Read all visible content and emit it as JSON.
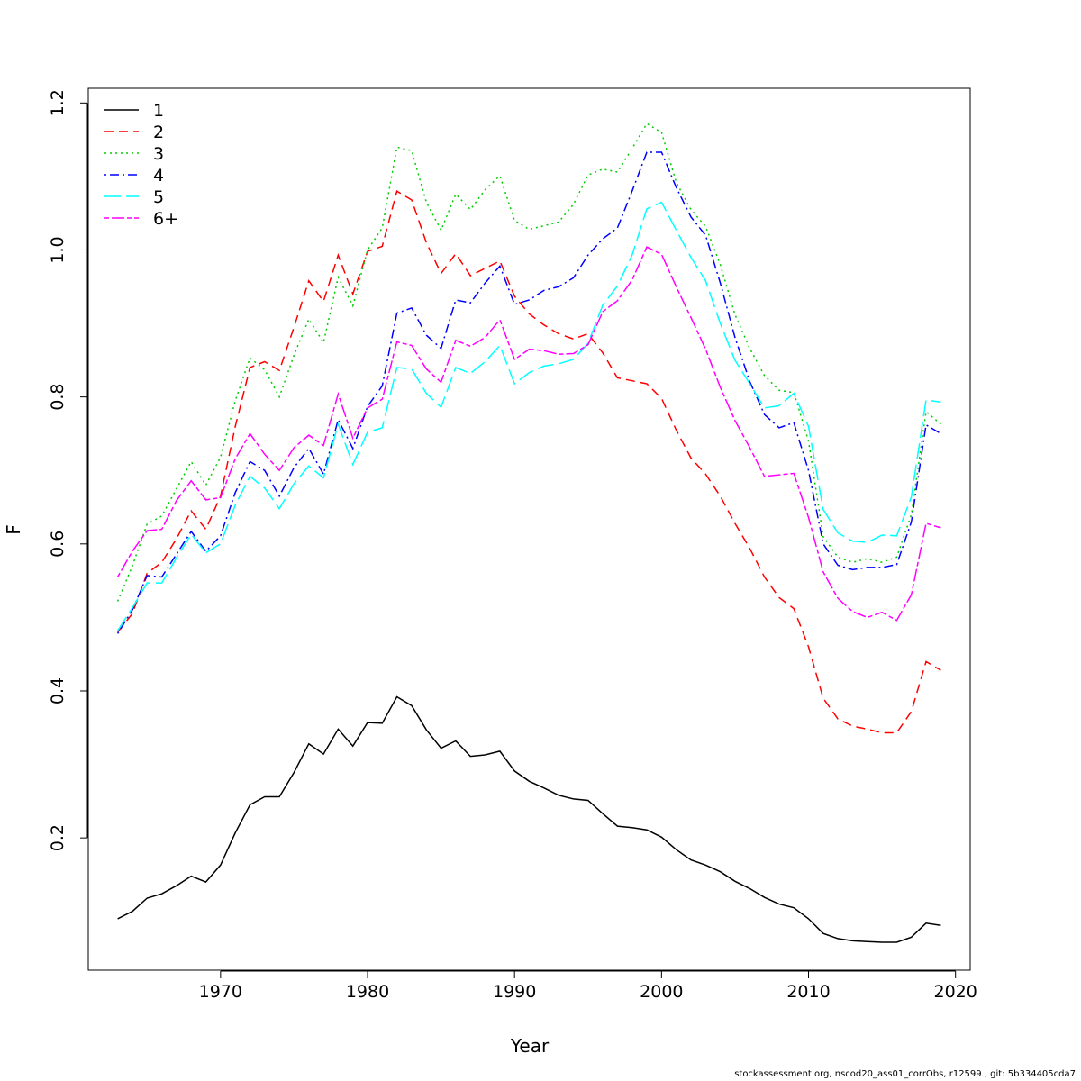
{
  "chart_data": {
    "type": "line",
    "title": "",
    "xlabel": "Year",
    "ylabel": "F",
    "xlim": [
      1961,
      2021
    ],
    "ylim": [
      0.02,
      1.22
    ],
    "xticks": [
      1970,
      1980,
      1990,
      2000,
      2010,
      2020
    ],
    "xtick_labels": [
      "1970",
      "1980",
      "1990",
      "2000",
      "2010",
      "2020"
    ],
    "yticks": [
      0.2,
      0.4,
      0.6,
      0.8,
      1.0,
      1.2
    ],
    "ytick_labels": [
      "0.2",
      "0.4",
      "0.6",
      "0.8",
      "1.0",
      "1.2"
    ],
    "grid": false,
    "legend_position": "top-left",
    "x": [
      1963,
      1964,
      1965,
      1966,
      1967,
      1968,
      1969,
      1970,
      1971,
      1972,
      1973,
      1974,
      1975,
      1976,
      1977,
      1978,
      1979,
      1980,
      1981,
      1982,
      1983,
      1984,
      1985,
      1986,
      1987,
      1988,
      1989,
      1990,
      1991,
      1992,
      1993,
      1994,
      1995,
      1996,
      1997,
      1998,
      1999,
      2000,
      2001,
      2002,
      2003,
      2004,
      2005,
      2006,
      2007,
      2008,
      2009,
      2010,
      2011,
      2012,
      2013,
      2014,
      2015,
      2016,
      2017,
      2018,
      2019
    ],
    "series": [
      {
        "name": "1",
        "color": "#000000",
        "dash": "solid",
        "values": [
          0.09,
          0.1,
          0.118,
          0.124,
          0.135,
          0.148,
          0.14,
          0.163,
          0.207,
          0.245,
          0.256,
          0.256,
          0.289,
          0.328,
          0.314,
          0.348,
          0.325,
          0.357,
          0.356,
          0.392,
          0.38,
          0.347,
          0.322,
          0.332,
          0.311,
          0.313,
          0.318,
          0.291,
          0.277,
          0.268,
          0.258,
          0.253,
          0.251,
          0.233,
          0.216,
          0.214,
          0.211,
          0.201,
          0.184,
          0.17,
          0.163,
          0.154,
          0.141,
          0.131,
          0.119,
          0.11,
          0.105,
          0.09,
          0.07,
          0.063,
          0.06,
          0.059,
          0.058,
          0.058,
          0.065,
          0.084,
          0.081
        ]
      },
      {
        "name": "2",
        "color": "#ff0000",
        "dash": "dashed",
        "values": [
          0.48,
          0.505,
          0.56,
          0.575,
          0.607,
          0.645,
          0.62,
          0.665,
          0.76,
          0.84,
          0.848,
          0.836,
          0.895,
          0.958,
          0.93,
          0.993,
          0.94,
          0.998,
          1.005,
          1.08,
          1.068,
          1.01,
          0.968,
          0.995,
          0.965,
          0.975,
          0.985,
          0.937,
          0.913,
          0.898,
          0.886,
          0.879,
          0.886,
          0.86,
          0.826,
          0.822,
          0.818,
          0.798,
          0.755,
          0.717,
          0.695,
          0.665,
          0.628,
          0.594,
          0.555,
          0.527,
          0.512,
          0.46,
          0.39,
          0.362,
          0.352,
          0.348,
          0.343,
          0.343,
          0.372,
          0.44,
          0.428
        ]
      },
      {
        "name": "3",
        "color": "#00cd00",
        "dash": "dotted",
        "values": [
          0.522,
          0.57,
          0.627,
          0.638,
          0.675,
          0.712,
          0.68,
          0.718,
          0.795,
          0.853,
          0.837,
          0.8,
          0.857,
          0.906,
          0.874,
          0.963,
          0.924,
          1.0,
          1.03,
          1.14,
          1.135,
          1.065,
          1.027,
          1.076,
          1.055,
          1.082,
          1.101,
          1.04,
          1.028,
          1.033,
          1.038,
          1.062,
          1.102,
          1.11,
          1.106,
          1.138,
          1.172,
          1.16,
          1.092,
          1.055,
          1.032,
          0.98,
          0.912,
          0.866,
          0.829,
          0.809,
          0.806,
          0.74,
          0.61,
          0.582,
          0.575,
          0.58,
          0.575,
          0.582,
          0.64,
          0.78,
          0.763
        ]
      },
      {
        "name": "4",
        "color": "#0000ff",
        "dash": "dotdash",
        "values": [
          0.478,
          0.51,
          0.557,
          0.555,
          0.586,
          0.617,
          0.59,
          0.611,
          0.67,
          0.712,
          0.7,
          0.665,
          0.704,
          0.73,
          0.695,
          0.769,
          0.73,
          0.787,
          0.815,
          0.914,
          0.921,
          0.884,
          0.866,
          0.932,
          0.928,
          0.955,
          0.978,
          0.926,
          0.932,
          0.945,
          0.95,
          0.962,
          0.993,
          1.015,
          1.03,
          1.08,
          1.133,
          1.133,
          1.085,
          1.045,
          1.02,
          0.955,
          0.881,
          0.821,
          0.776,
          0.758,
          0.765,
          0.7,
          0.6,
          0.571,
          0.565,
          0.568,
          0.568,
          0.572,
          0.63,
          0.762,
          0.75
        ]
      },
      {
        "name": "5",
        "color": "#00ffff",
        "dash": "longdash",
        "values": [
          0.482,
          0.513,
          0.547,
          0.547,
          0.581,
          0.613,
          0.588,
          0.6,
          0.653,
          0.692,
          0.676,
          0.648,
          0.682,
          0.706,
          0.69,
          0.763,
          0.708,
          0.752,
          0.758,
          0.84,
          0.838,
          0.805,
          0.786,
          0.84,
          0.832,
          0.848,
          0.87,
          0.818,
          0.833,
          0.842,
          0.845,
          0.851,
          0.873,
          0.925,
          0.951,
          0.993,
          1.056,
          1.065,
          1.027,
          0.99,
          0.958,
          0.9,
          0.85,
          0.818,
          0.785,
          0.788,
          0.805,
          0.76,
          0.647,
          0.615,
          0.604,
          0.602,
          0.612,
          0.611,
          0.664,
          0.796,
          0.793
        ]
      },
      {
        "name": "6+",
        "color": "#ff00ff",
        "dash": "twodash",
        "values": [
          0.555,
          0.59,
          0.618,
          0.62,
          0.659,
          0.686,
          0.66,
          0.663,
          0.716,
          0.75,
          0.722,
          0.7,
          0.731,
          0.748,
          0.734,
          0.804,
          0.744,
          0.785,
          0.797,
          0.875,
          0.87,
          0.838,
          0.82,
          0.877,
          0.869,
          0.881,
          0.905,
          0.851,
          0.865,
          0.863,
          0.858,
          0.859,
          0.871,
          0.916,
          0.931,
          0.959,
          1.004,
          0.994,
          0.95,
          0.908,
          0.865,
          0.813,
          0.768,
          0.731,
          0.692,
          0.694,
          0.696,
          0.636,
          0.562,
          0.526,
          0.508,
          0.5,
          0.507,
          0.496,
          0.531,
          0.628,
          0.622
        ]
      }
    ]
  },
  "footer_text": "stockassessment.org, nscod20_ass01_corrObs, r12599 , git: 5b334405cda7"
}
